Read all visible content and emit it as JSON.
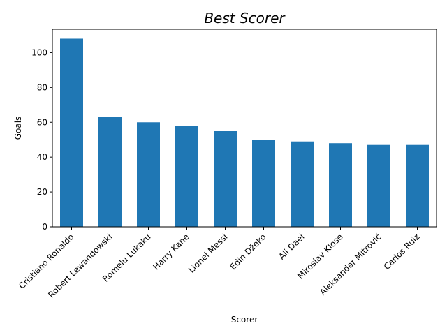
{
  "chart_data": {
    "type": "bar",
    "title": "Best Scorer",
    "xlabel": "Scorer",
    "ylabel": "Goals",
    "categories": [
      "Cristiano Ronaldo",
      "Robert Lewandowski",
      "Romelu Lukaku",
      "Harry Kane",
      "Lionel Messi",
      "Edin Džeko",
      "Ali Daei",
      "Miroslav Klose",
      "Aleksandar Mitrović",
      "Carlos Ruiz"
    ],
    "values": [
      108,
      63,
      60,
      58,
      55,
      50,
      49,
      48,
      47,
      47
    ],
    "ylim": [
      0,
      113.4
    ],
    "yticks": [
      0,
      20,
      40,
      60,
      80,
      100
    ],
    "bar_color": "#1f77b4",
    "grid": false,
    "legend": "none"
  }
}
